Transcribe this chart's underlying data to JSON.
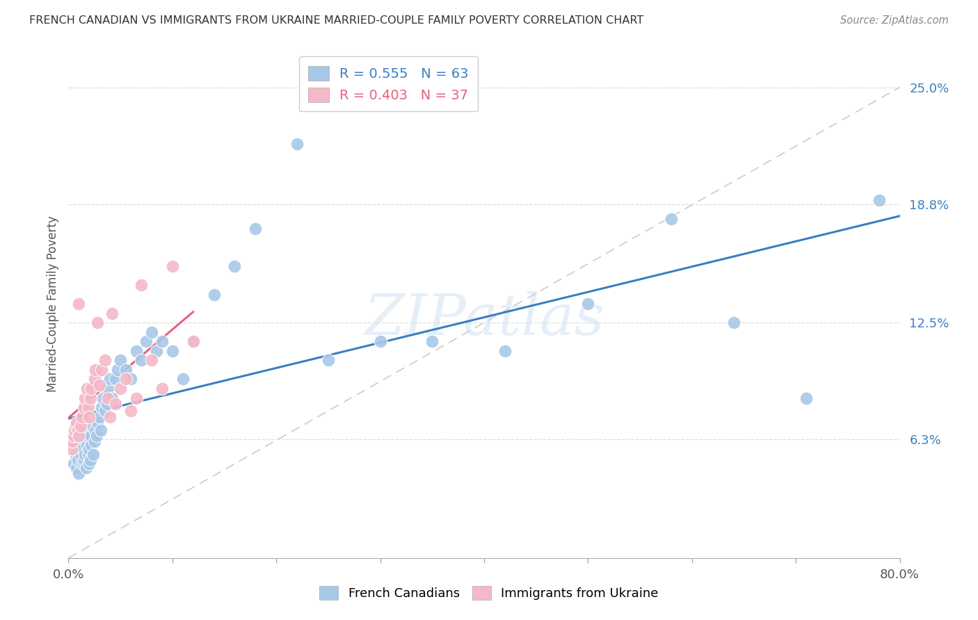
{
  "title": "FRENCH CANADIAN VS IMMIGRANTS FROM UKRAINE MARRIED-COUPLE FAMILY POVERTY CORRELATION CHART",
  "source": "Source: ZipAtlas.com",
  "ylabel": "Married-Couple Family Poverty",
  "ytick_labels": [
    "25.0%",
    "18.8%",
    "12.5%",
    "6.3%"
  ],
  "ytick_values": [
    0.25,
    0.188,
    0.125,
    0.063
  ],
  "xlim": [
    0.0,
    0.8
  ],
  "ylim": [
    0.0,
    0.27
  ],
  "legend_label1": "French Canadians",
  "legend_label2": "Immigrants from Ukraine",
  "r1": 0.555,
  "n1": 63,
  "r2": 0.403,
  "n2": 37,
  "blue_color": "#a8c8e8",
  "pink_color": "#f4b8c8",
  "blue_line_color": "#3a7fc1",
  "pink_line_color": "#e8607a",
  "diag_line_color": "#cccccc",
  "background_color": "#ffffff",
  "blue_x": [
    0.005,
    0.007,
    0.008,
    0.009,
    0.01,
    0.01,
    0.012,
    0.013,
    0.014,
    0.015,
    0.015,
    0.016,
    0.017,
    0.018,
    0.018,
    0.019,
    0.02,
    0.02,
    0.021,
    0.022,
    0.022,
    0.023,
    0.024,
    0.025,
    0.026,
    0.027,
    0.028,
    0.03,
    0.031,
    0.032,
    0.033,
    0.035,
    0.037,
    0.038,
    0.04,
    0.042,
    0.045,
    0.047,
    0.05,
    0.055,
    0.06,
    0.065,
    0.07,
    0.075,
    0.08,
    0.085,
    0.09,
    0.1,
    0.11,
    0.12,
    0.14,
    0.16,
    0.18,
    0.22,
    0.25,
    0.3,
    0.35,
    0.42,
    0.5,
    0.58,
    0.64,
    0.71,
    0.78
  ],
  "blue_y": [
    0.05,
    0.055,
    0.048,
    0.052,
    0.045,
    0.06,
    0.055,
    0.05,
    0.058,
    0.05,
    0.052,
    0.055,
    0.048,
    0.06,
    0.065,
    0.055,
    0.05,
    0.058,
    0.052,
    0.06,
    0.065,
    0.07,
    0.055,
    0.062,
    0.068,
    0.065,
    0.072,
    0.075,
    0.068,
    0.08,
    0.085,
    0.078,
    0.082,
    0.09,
    0.095,
    0.085,
    0.095,
    0.1,
    0.105,
    0.1,
    0.095,
    0.11,
    0.105,
    0.115,
    0.12,
    0.11,
    0.115,
    0.11,
    0.095,
    0.115,
    0.14,
    0.155,
    0.175,
    0.22,
    0.105,
    0.115,
    0.115,
    0.11,
    0.135,
    0.18,
    0.125,
    0.085,
    0.19
  ],
  "pink_x": [
    0.003,
    0.004,
    0.005,
    0.006,
    0.007,
    0.008,
    0.009,
    0.01,
    0.01,
    0.012,
    0.013,
    0.015,
    0.016,
    0.018,
    0.019,
    0.02,
    0.021,
    0.022,
    0.025,
    0.026,
    0.028,
    0.03,
    0.032,
    0.035,
    0.038,
    0.04,
    0.042,
    0.045,
    0.05,
    0.055,
    0.06,
    0.065,
    0.07,
    0.08,
    0.09,
    0.1,
    0.12
  ],
  "pink_y": [
    0.058,
    0.062,
    0.065,
    0.068,
    0.07,
    0.072,
    0.068,
    0.065,
    0.135,
    0.07,
    0.075,
    0.08,
    0.085,
    0.09,
    0.08,
    0.075,
    0.085,
    0.09,
    0.095,
    0.1,
    0.125,
    0.092,
    0.1,
    0.105,
    0.085,
    0.075,
    0.13,
    0.082,
    0.09,
    0.095,
    0.078,
    0.085,
    0.145,
    0.105,
    0.09,
    0.155,
    0.115
  ]
}
